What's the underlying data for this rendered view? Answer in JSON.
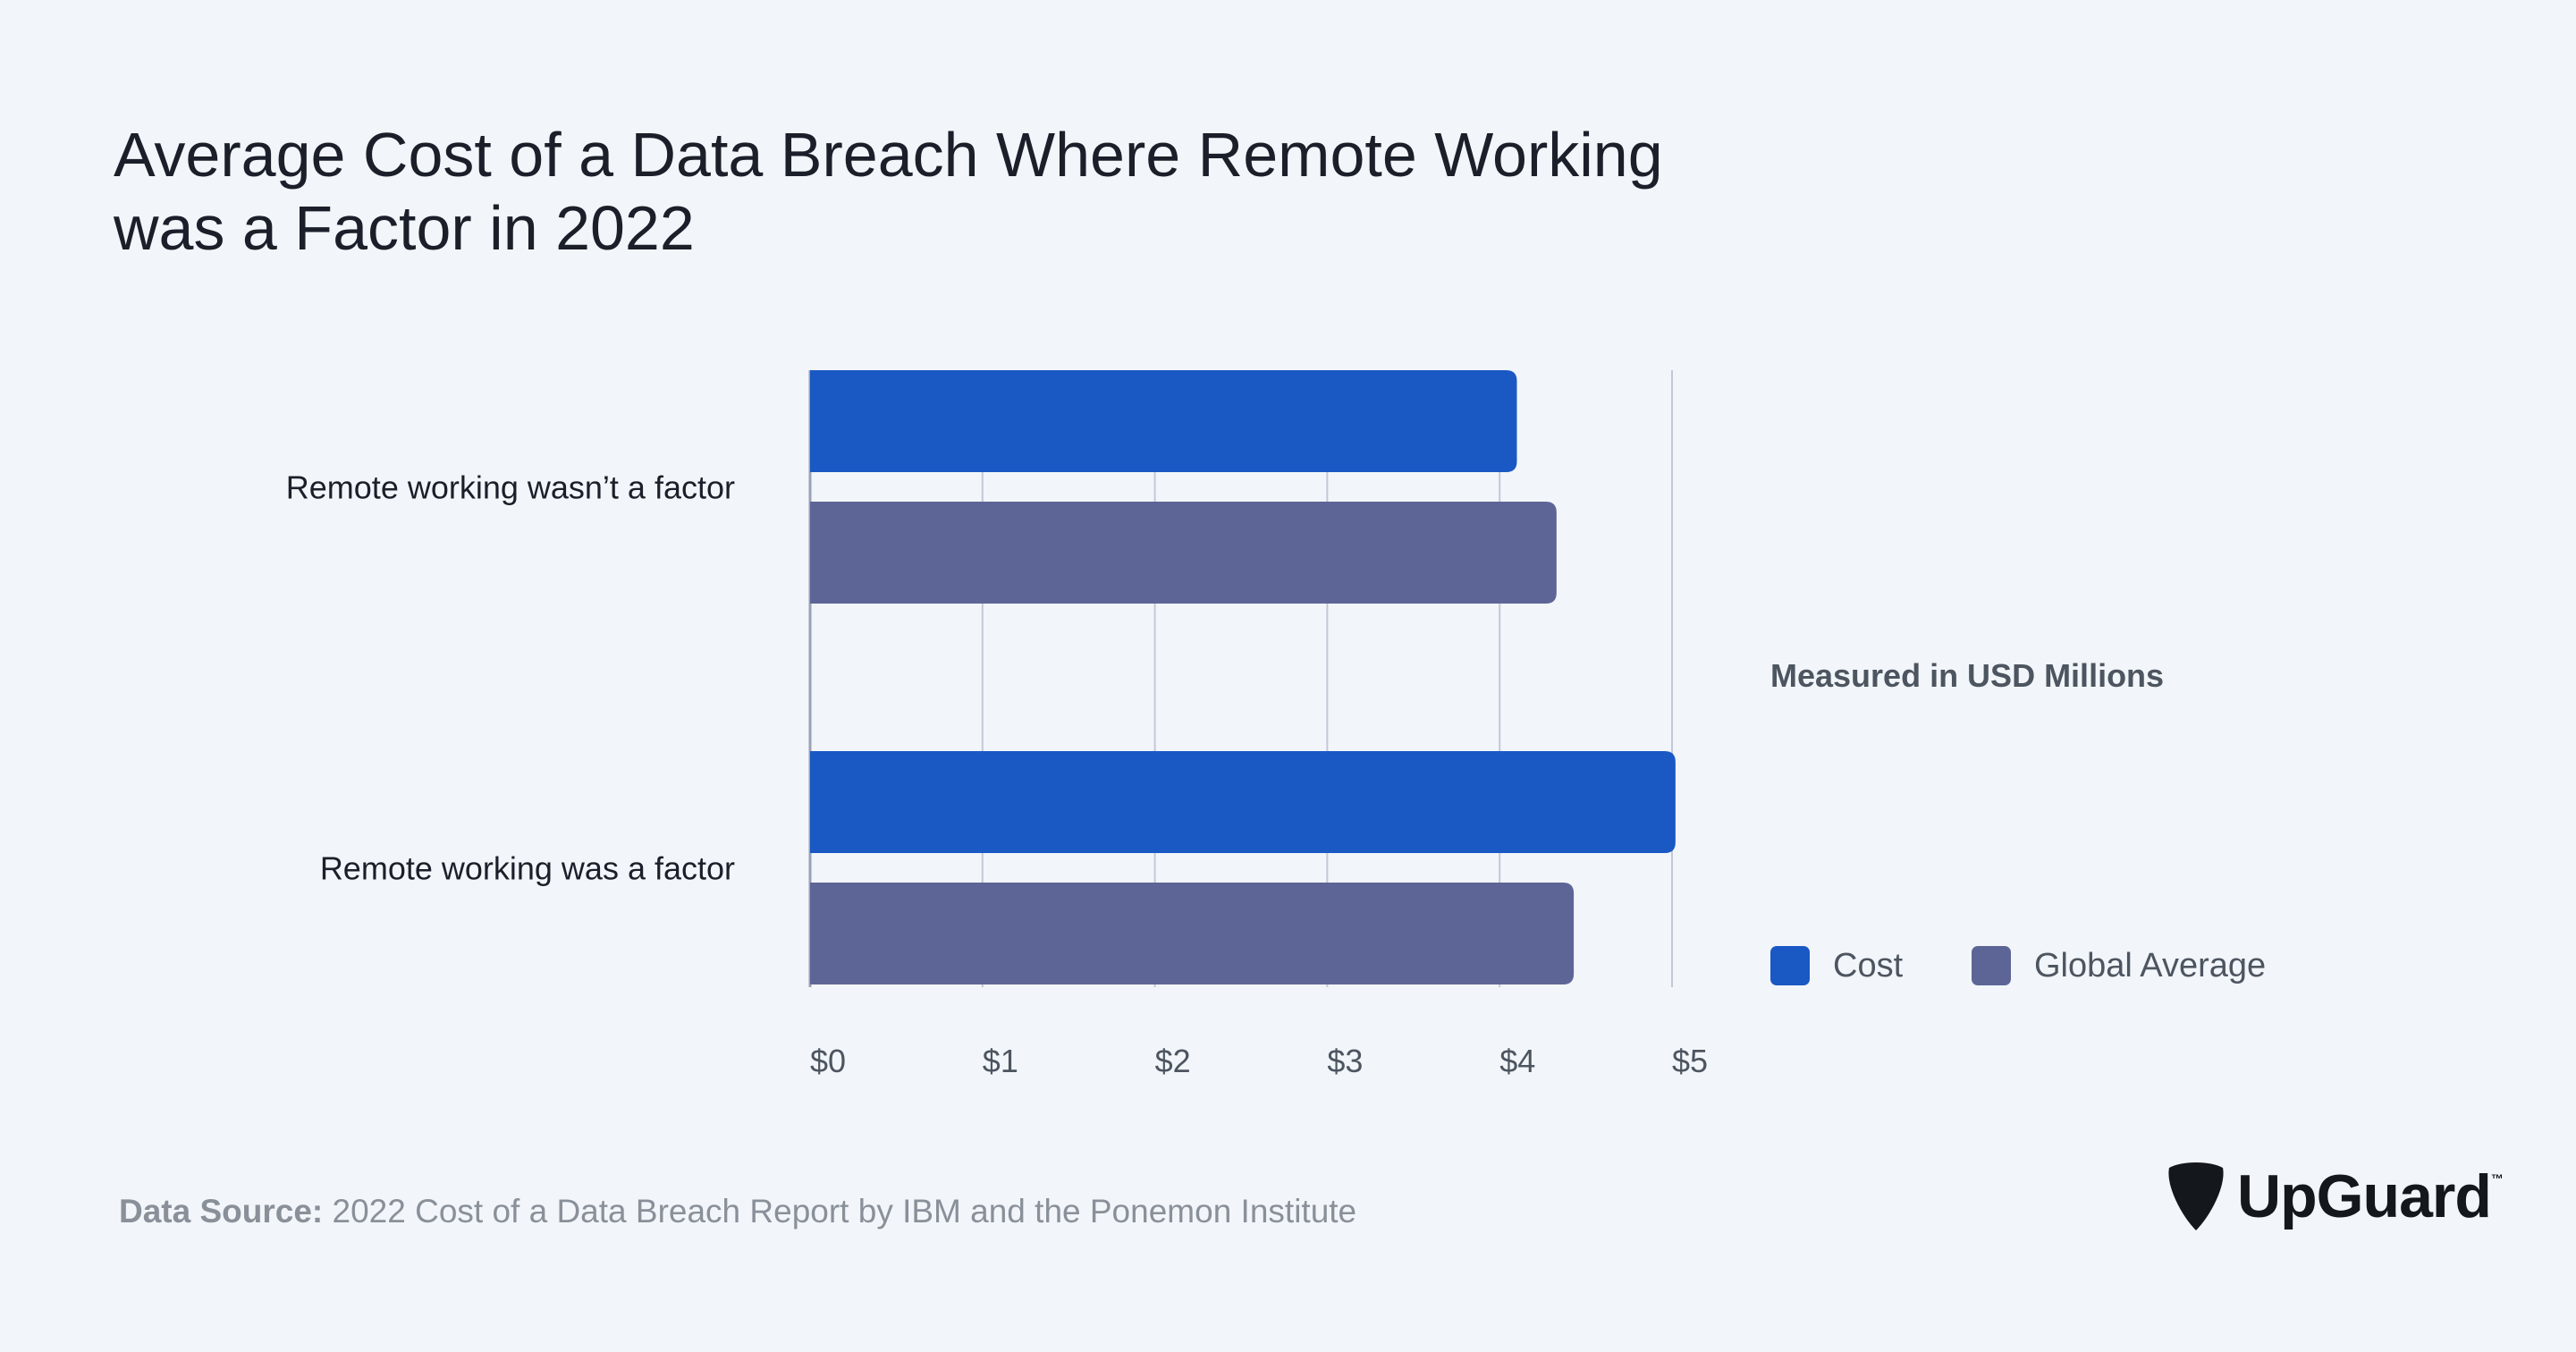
{
  "chart_data": {
    "type": "bar",
    "orientation": "horizontal",
    "title": [
      "Average Cost of a Data Breach Where Remote Working",
      "was a Factor in 2022"
    ],
    "categories": [
      "Remote working wasn’t a factor",
      "Remote working was a factor"
    ],
    "series": [
      {
        "name": "Cost",
        "values": [
          4.1,
          5.02
        ],
        "color": "#1a58c4"
      },
      {
        "name": "Global Average",
        "values": [
          4.33,
          4.43
        ],
        "color": "#5d6597"
      }
    ],
    "xticks": [
      "$0",
      "$1",
      "$2",
      "$3",
      "$4",
      "$5"
    ],
    "xlim": [
      0,
      5
    ],
    "grid": true,
    "unit_note": "Measured in USD Millions",
    "legend_position": "right"
  },
  "footer": {
    "source_label": "Data Source:",
    "source_text": " 2022 Cost of a Data Breach Report by IBM and the Ponemon Institute"
  },
  "logo": {
    "text": "UpGuard",
    "tm": "™"
  }
}
